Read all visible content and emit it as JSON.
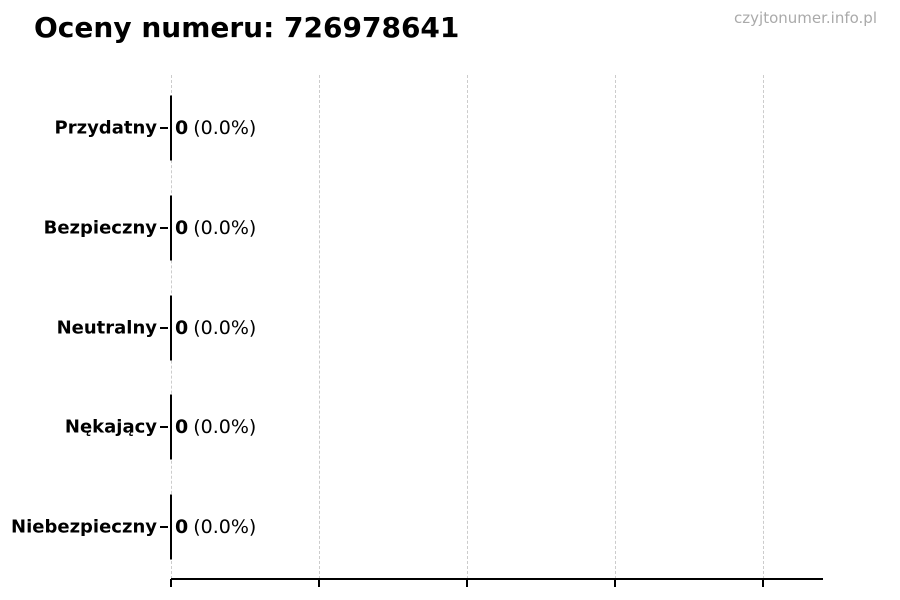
{
  "header": {
    "title": "Oceny numeru: 726978641",
    "watermark": "czyjtonumer.info.pl"
  },
  "chart_data": {
    "type": "bar",
    "orientation": "horizontal",
    "title": "Oceny numeru: 726978641",
    "categories": [
      "Przydatny",
      "Bezpieczny",
      "Neutralny",
      "Nękający",
      "Niebezpieczny"
    ],
    "values": [
      0,
      0,
      0,
      0,
      0
    ],
    "value_labels": [
      "0 (0.0%)",
      "0 (0.0%)",
      "0 (0.0%)",
      "0 (0.0%)",
      "0 (0.0%)"
    ],
    "xlabel": "",
    "ylabel": "",
    "x_tick_labels": [],
    "x_gridline_count": 5,
    "grid": "vertical-dashed",
    "legend": "none",
    "colors": {
      "text": "#000000",
      "gridline": "#cccccc",
      "axis": "#000000",
      "watermark": "#aaaaaa",
      "background": "#ffffff"
    }
  },
  "rows": [
    {
      "label": "Przydatny",
      "value": "0",
      "pct": "(0.0%)"
    },
    {
      "label": "Bezpieczny",
      "value": "0",
      "pct": "(0.0%)"
    },
    {
      "label": "Neutralny",
      "value": "0",
      "pct": "(0.0%)"
    },
    {
      "label": "Nękający",
      "value": "0",
      "pct": "(0.0%)"
    },
    {
      "label": "Niebezpieczny",
      "value": "0",
      "pct": "(0.0%)"
    }
  ]
}
